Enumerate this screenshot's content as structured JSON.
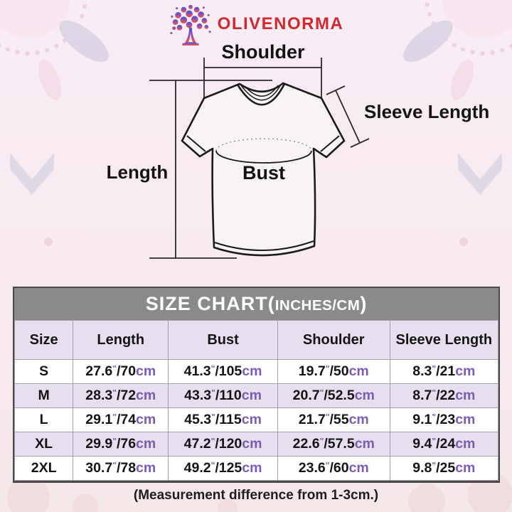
{
  "logo": {
    "brand": "OLIVENORMA",
    "icon": "gradient-tree"
  },
  "diagram": {
    "labels": {
      "shoulder": "Shoulder",
      "sleeve_length": "Sleeve Length",
      "length": "Length",
      "bust": "Bust"
    }
  },
  "size_chart": {
    "title_main": "SIZE CHART(",
    "title_units": "INCHES/CM",
    "title_close": ")",
    "columns": [
      "Size",
      "Length",
      "Bust",
      "Shoulder",
      "Sleeve Length"
    ],
    "rows": [
      {
        "size": "S",
        "measurements": [
          {
            "inches": "27.6",
            "cm": "70"
          },
          {
            "inches": "41.3",
            "cm": "105"
          },
          {
            "inches": "19.7",
            "cm": "50"
          },
          {
            "inches": "8.3",
            "cm": "21"
          }
        ]
      },
      {
        "size": "M",
        "measurements": [
          {
            "inches": "28.3",
            "cm": "72"
          },
          {
            "inches": "43.3",
            "cm": "110"
          },
          {
            "inches": "20.7",
            "cm": "52.5"
          },
          {
            "inches": "8.7",
            "cm": "22"
          }
        ]
      },
      {
        "size": "L",
        "measurements": [
          {
            "inches": "29.1",
            "cm": "74"
          },
          {
            "inches": "45.3",
            "cm": "115"
          },
          {
            "inches": "21.7",
            "cm": "55"
          },
          {
            "inches": "9.1",
            "cm": "23"
          }
        ]
      },
      {
        "size": "XL",
        "measurements": [
          {
            "inches": "29.9",
            "cm": "76"
          },
          {
            "inches": "47.2",
            "cm": "120"
          },
          {
            "inches": "22.6",
            "cm": "57.5"
          },
          {
            "inches": "9.4",
            "cm": "24"
          }
        ]
      },
      {
        "size": "2XL",
        "measurements": [
          {
            "inches": "30.7",
            "cm": "78"
          },
          {
            "inches": "49.2",
            "cm": "125"
          },
          {
            "inches": "23.6",
            "cm": "60"
          },
          {
            "inches": "9.8",
            "cm": "25"
          }
        ]
      }
    ]
  },
  "footer": {
    "note": "(Measurement difference from 1-3cm.)"
  },
  "colors": {
    "accent_purple": "#7a5db3",
    "brand_red": "#d2282e",
    "header_gray": "#8a8a8a",
    "row_lavender": "#e6dfee"
  }
}
